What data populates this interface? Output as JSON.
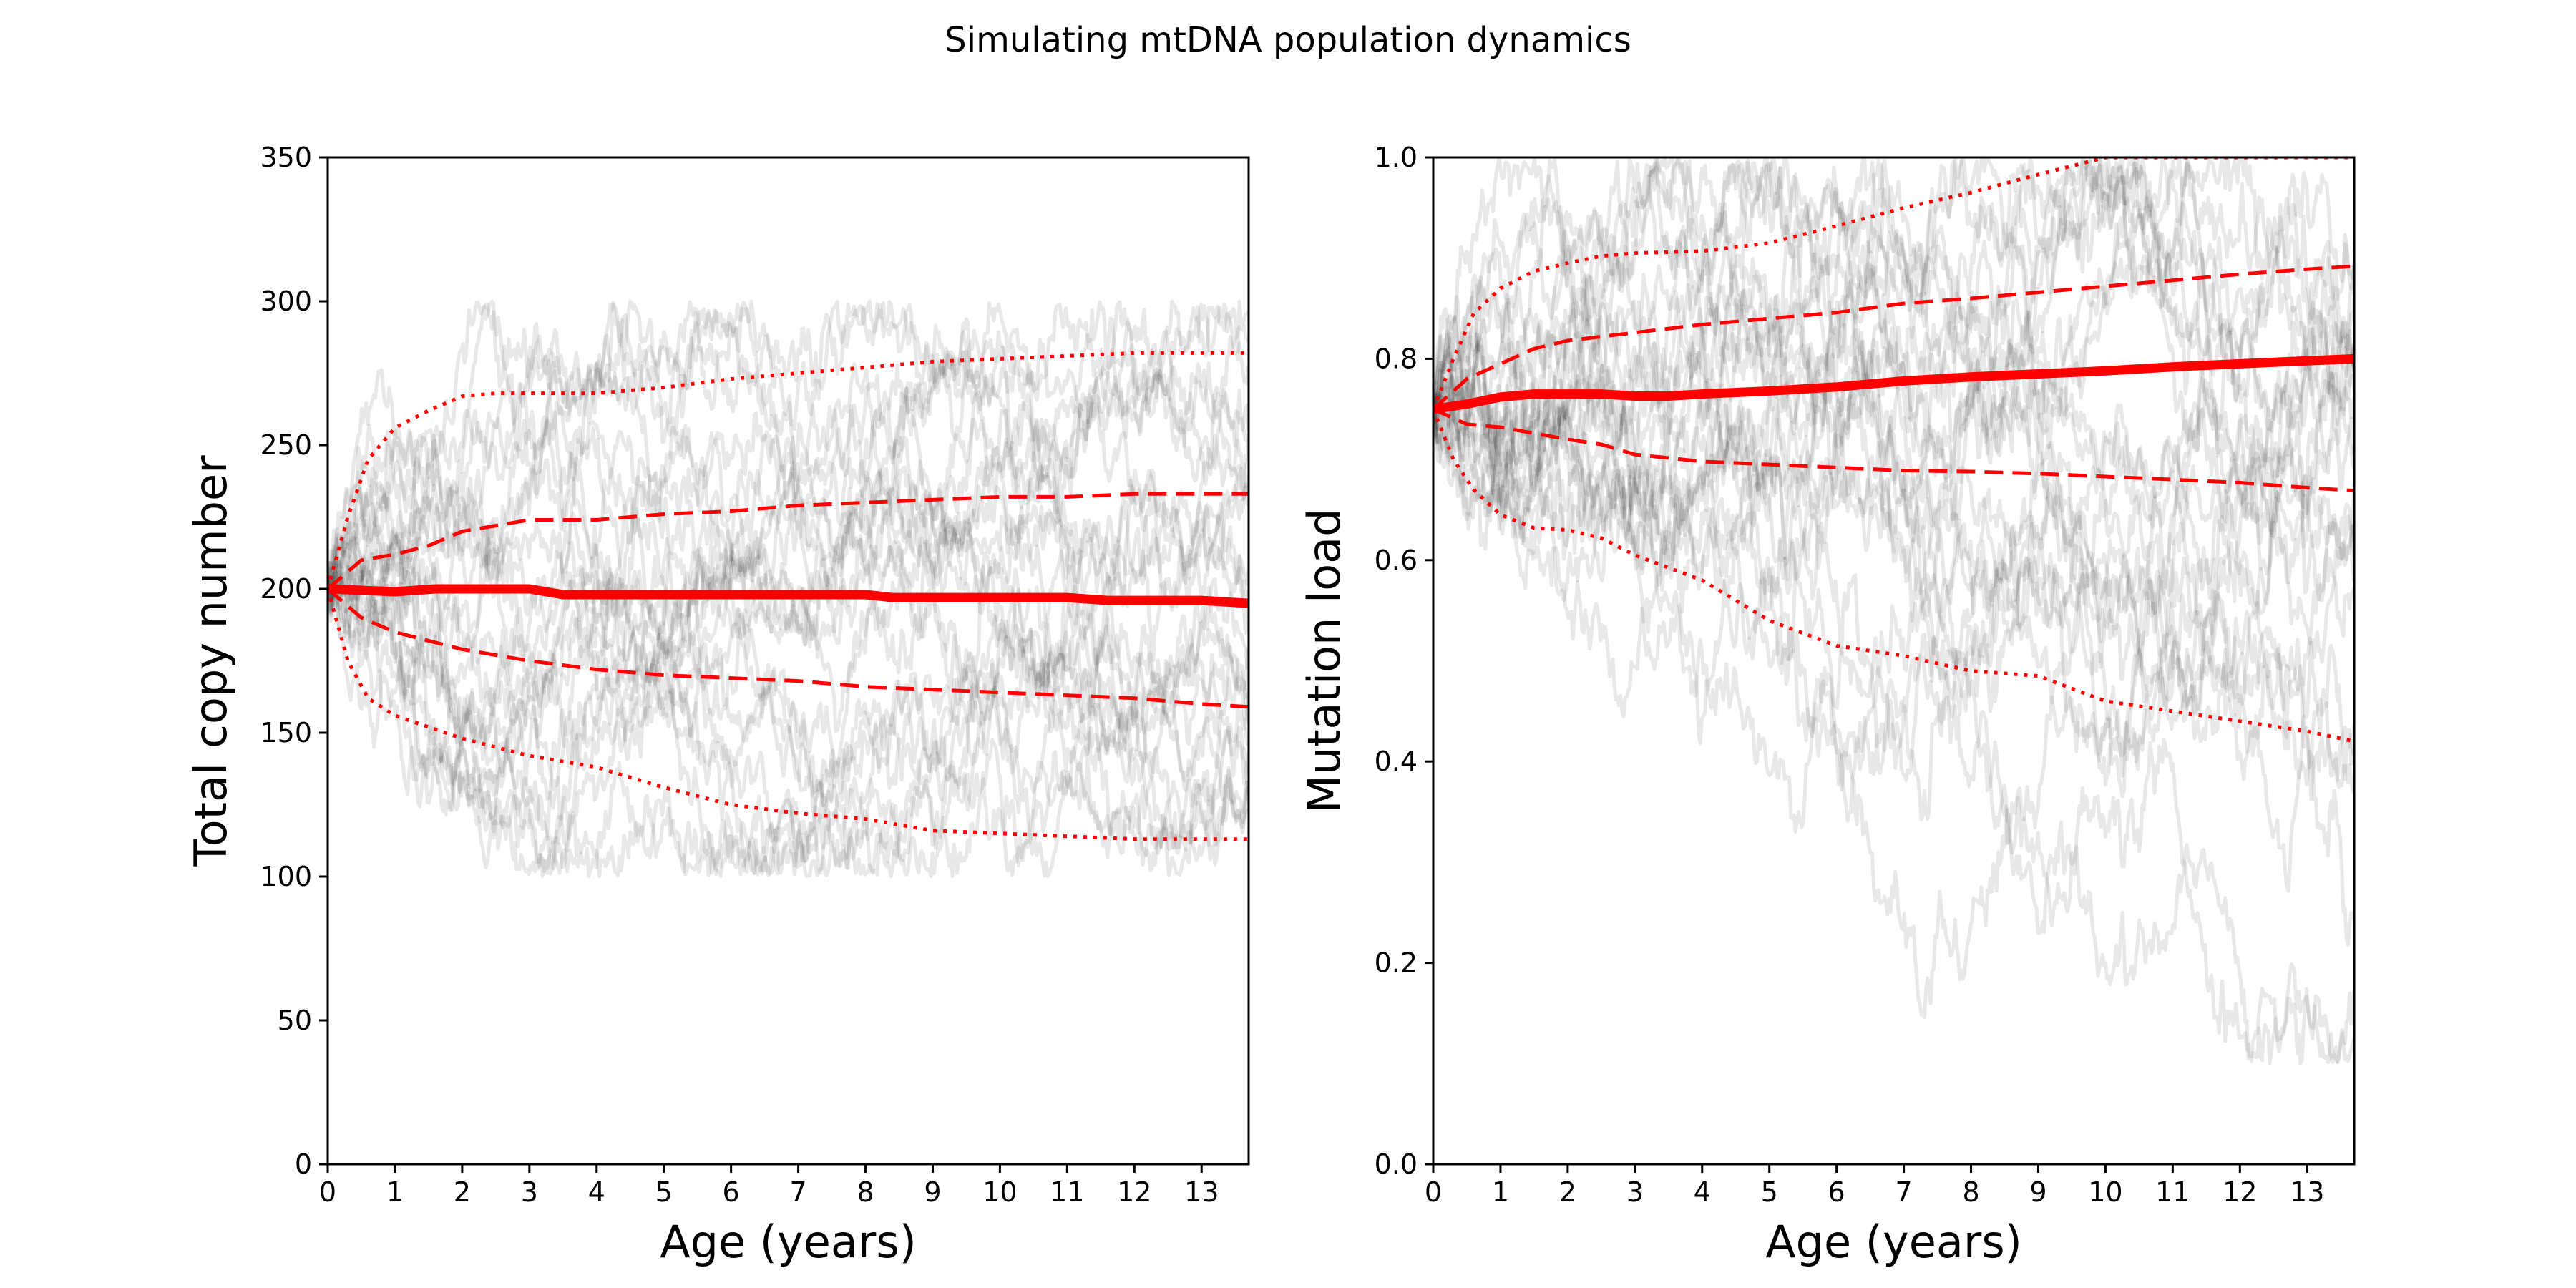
{
  "figure": {
    "title": "Simulating mtDNA population dynamics"
  },
  "colors": {
    "simulation_traces": "#000000",
    "summary_lines": "#ff0000",
    "axes": "#000000",
    "background": "#ffffff"
  },
  "chart_data": [
    {
      "type": "line",
      "title": "",
      "xlabel": "Age (years)",
      "ylabel": "Total copy number",
      "xlim": [
        0,
        13.7
      ],
      "ylim": [
        0,
        350
      ],
      "xticks": [
        0,
        1,
        2,
        3,
        4,
        5,
        6,
        7,
        8,
        9,
        10,
        11,
        12,
        13
      ],
      "yticks": [
        0,
        50,
        100,
        150,
        200,
        250,
        300,
        350
      ],
      "grid": false,
      "legend": "none",
      "simulations": {
        "count": 24,
        "color": "#000000",
        "alpha": 0.09,
        "start": 200,
        "bounds": [
          100,
          300
        ]
      },
      "series": [
        {
          "style": "solid",
          "linewidth": "thick",
          "x": [
            0,
            1,
            1.6,
            2,
            3,
            3.5,
            4,
            5,
            6,
            7,
            8,
            8.4,
            9,
            10,
            11,
            11.6,
            12,
            13,
            13.7
          ],
          "y": [
            200,
            199,
            200,
            200,
            200,
            198,
            198,
            198,
            198,
            198,
            198,
            197,
            197,
            197,
            197,
            196,
            196,
            196,
            195
          ]
        },
        {
          "style": "dashed",
          "linewidth": "medium",
          "x": [
            0,
            0.5,
            1,
            1.5,
            2,
            2.5,
            3,
            4,
            5,
            6,
            7,
            8,
            9,
            10,
            11,
            12,
            13,
            13.7
          ],
          "y": [
            200,
            210,
            212,
            215,
            220,
            222,
            224,
            224,
            226,
            227,
            229,
            230,
            231,
            232,
            232,
            233,
            233,
            233
          ]
        },
        {
          "style": "dashed",
          "linewidth": "medium",
          "x": [
            0,
            0.5,
            1,
            1.5,
            2,
            2.5,
            3,
            4,
            5,
            6,
            7,
            8,
            9,
            10,
            11,
            12,
            13,
            13.7
          ],
          "y": [
            200,
            190,
            185,
            182,
            179,
            177,
            175,
            172,
            170,
            169,
            168,
            166,
            165,
            164,
            163,
            162,
            160,
            159
          ]
        },
        {
          "style": "dotted",
          "linewidth": "medium",
          "x": [
            0,
            0.3,
            0.6,
            1,
            1.5,
            2,
            2.5,
            3,
            4,
            5,
            6,
            7,
            8,
            9,
            10,
            11,
            12,
            13,
            13.7
          ],
          "y": [
            200,
            225,
            245,
            256,
            262,
            267,
            268,
            268,
            268,
            270,
            273,
            275,
            277,
            279,
            280,
            281,
            282,
            282,
            282
          ]
        },
        {
          "style": "dotted",
          "linewidth": "medium",
          "x": [
            0,
            0.3,
            0.6,
            1,
            1.5,
            2,
            2.5,
            3,
            4,
            5,
            6,
            7,
            8,
            9,
            10,
            11,
            12,
            13,
            13.7
          ],
          "y": [
            200,
            175,
            162,
            156,
            152,
            148,
            145,
            142,
            138,
            131,
            125,
            122,
            120,
            116,
            115,
            114,
            113,
            113,
            113
          ]
        }
      ]
    },
    {
      "type": "line",
      "title": "",
      "xlabel": "Age (years)",
      "ylabel": "Mutation load",
      "xlim": [
        0,
        13.7
      ],
      "ylim": [
        0,
        1
      ],
      "xticks": [
        0,
        1,
        2,
        3,
        4,
        5,
        6,
        7,
        8,
        9,
        10,
        11,
        12,
        13
      ],
      "yticks": [
        0.0,
        0.2,
        0.4,
        0.6,
        0.8,
        1.0
      ],
      "ytick_labels": [
        "0.0",
        "0.2",
        "0.4",
        "0.6",
        "0.8",
        "1.0"
      ],
      "grid": false,
      "legend": "none",
      "simulations": {
        "count": 24,
        "color": "#000000",
        "alpha": 0.09,
        "start": 0.75,
        "bounds": [
          0.1,
          1.0
        ]
      },
      "series": [
        {
          "style": "solid",
          "linewidth": "thick",
          "x": [
            0,
            0.5,
            1,
            1.5,
            2,
            2.5,
            3,
            3.5,
            4,
            5,
            6,
            7,
            8,
            9,
            10,
            11,
            12,
            13,
            13.7
          ],
          "y": [
            0.75,
            0.755,
            0.762,
            0.765,
            0.765,
            0.765,
            0.763,
            0.763,
            0.765,
            0.768,
            0.772,
            0.778,
            0.782,
            0.785,
            0.788,
            0.792,
            0.795,
            0.798,
            0.8
          ]
        },
        {
          "style": "dashed",
          "linewidth": "medium",
          "x": [
            0,
            0.5,
            1,
            1.5,
            2,
            2.5,
            3,
            4,
            5,
            6,
            7,
            8,
            9,
            10,
            11,
            12,
            13,
            13.7
          ],
          "y": [
            0.75,
            0.78,
            0.795,
            0.81,
            0.818,
            0.822,
            0.826,
            0.834,
            0.84,
            0.846,
            0.855,
            0.86,
            0.866,
            0.872,
            0.878,
            0.884,
            0.889,
            0.892
          ]
        },
        {
          "style": "dashed",
          "linewidth": "medium",
          "x": [
            0,
            0.5,
            1,
            1.5,
            2,
            2.5,
            3,
            4,
            5,
            6,
            7,
            8,
            9,
            10,
            11,
            12,
            13,
            13.7
          ],
          "y": [
            0.75,
            0.735,
            0.732,
            0.726,
            0.72,
            0.715,
            0.705,
            0.698,
            0.695,
            0.692,
            0.689,
            0.688,
            0.686,
            0.683,
            0.68,
            0.677,
            0.672,
            0.669
          ]
        },
        {
          "style": "dotted",
          "linewidth": "medium",
          "x": [
            0,
            0.3,
            0.6,
            1,
            1.5,
            2,
            2.5,
            3,
            4,
            5,
            6,
            7,
            8,
            9,
            10,
            11,
            12,
            13,
            13.7
          ],
          "y": [
            0.75,
            0.8,
            0.845,
            0.87,
            0.887,
            0.895,
            0.902,
            0.905,
            0.907,
            0.915,
            0.932,
            0.95,
            0.965,
            0.983,
            1.0,
            1.0,
            1.0,
            1.0,
            1.0
          ]
        },
        {
          "style": "dotted",
          "linewidth": "medium",
          "x": [
            0,
            0.3,
            0.6,
            1,
            1.5,
            2,
            2.5,
            3,
            4,
            5,
            6,
            7,
            8,
            9,
            10,
            11,
            12,
            13,
            13.7
          ],
          "y": [
            0.75,
            0.7,
            0.67,
            0.645,
            0.632,
            0.63,
            0.622,
            0.605,
            0.58,
            0.54,
            0.515,
            0.505,
            0.49,
            0.485,
            0.46,
            0.45,
            0.44,
            0.43,
            0.42
          ]
        }
      ]
    }
  ]
}
